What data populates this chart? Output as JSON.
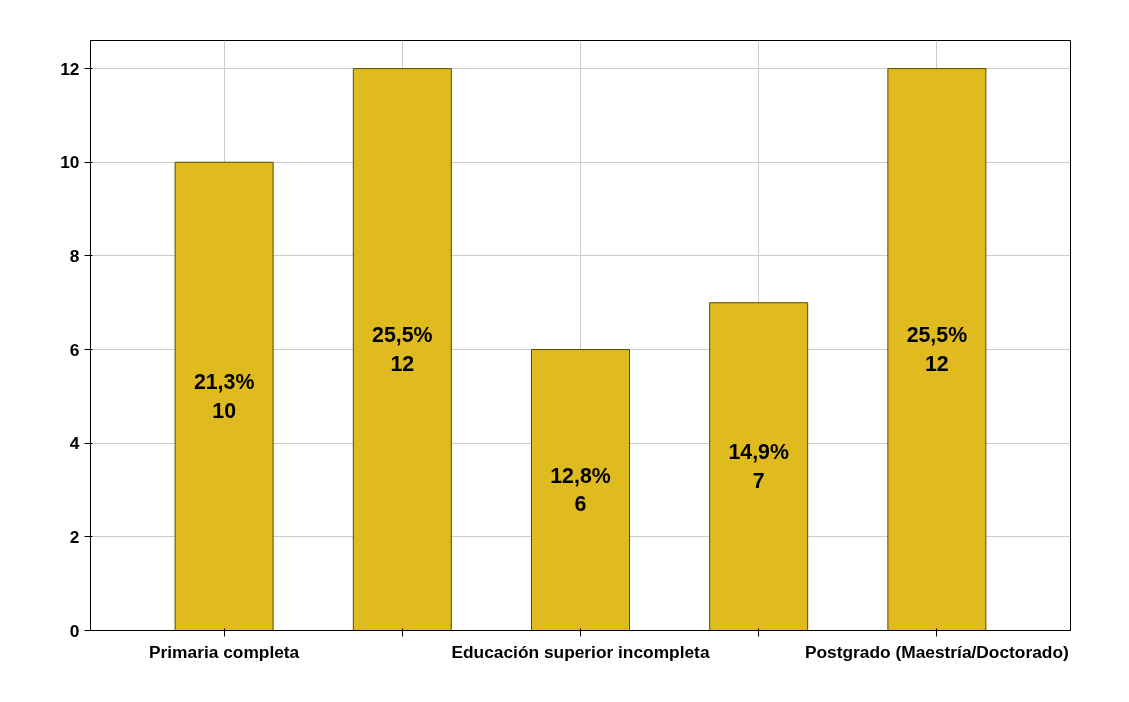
{
  "chart_data": {
    "type": "bar",
    "categories": [
      "Primaria completa",
      null,
      "Educación superior incompleta",
      null,
      "Postgrado (Maestría/Doctorado)"
    ],
    "values": [
      10,
      12,
      6,
      7,
      12
    ],
    "value_labels": [
      "21,3%\n10",
      "25,5%\n12",
      "12,8%\n6",
      "14,9%\n7",
      "25,5%\n12"
    ],
    "color": "#e0bb1f",
    "ylim": [
      0,
      12.6
    ],
    "yticks": [
      0,
      2,
      4,
      6,
      8,
      10,
      12
    ],
    "grid": true
  }
}
